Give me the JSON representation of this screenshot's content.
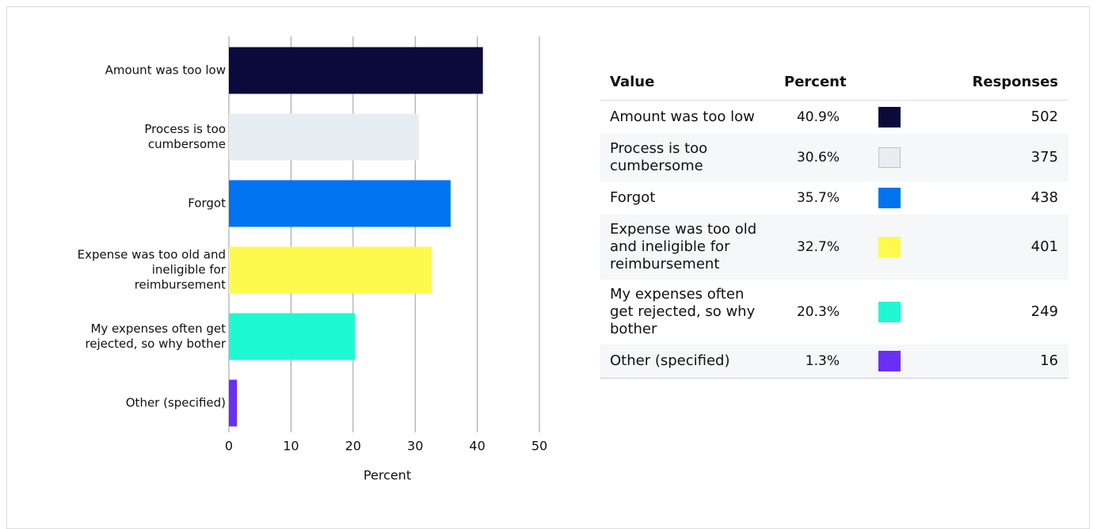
{
  "chart_data": {
    "type": "bar",
    "orientation": "horizontal",
    "categories": [
      "Amount was too low",
      "Process is too cumbersome",
      "Forgot",
      "Expense was too old and ineligible for reimbursement",
      "My expenses often get rejected, so why bother",
      "Other (specified)"
    ],
    "values": [
      40.9,
      30.6,
      35.7,
      32.7,
      20.3,
      1.3
    ],
    "colors": [
      "#0b0b3b",
      "#e8edf2",
      "#0073f0",
      "#fdfa4d",
      "#1ef9d4",
      "#6a2ef7"
    ],
    "xlim": [
      0,
      50
    ],
    "xticks": [
      0,
      10,
      20,
      30,
      40,
      50
    ],
    "xlabel": "Percent",
    "grid": true
  },
  "table": {
    "headers": [
      "Value",
      "Percent",
      "Responses"
    ],
    "rows": [
      [
        "Amount was too low",
        "40.9%",
        "502"
      ],
      [
        "Process is too cumbersome",
        "30.6%",
        "375"
      ],
      [
        "Forgot",
        "35.7%",
        "438"
      ],
      [
        "Expense was too old and ineligible for reimbursement",
        "32.7%",
        "401"
      ],
      [
        "My expenses often get rejected, so why bother",
        "20.3%",
        "249"
      ],
      [
        "Other (specified)",
        "1.3%",
        "16"
      ]
    ]
  }
}
